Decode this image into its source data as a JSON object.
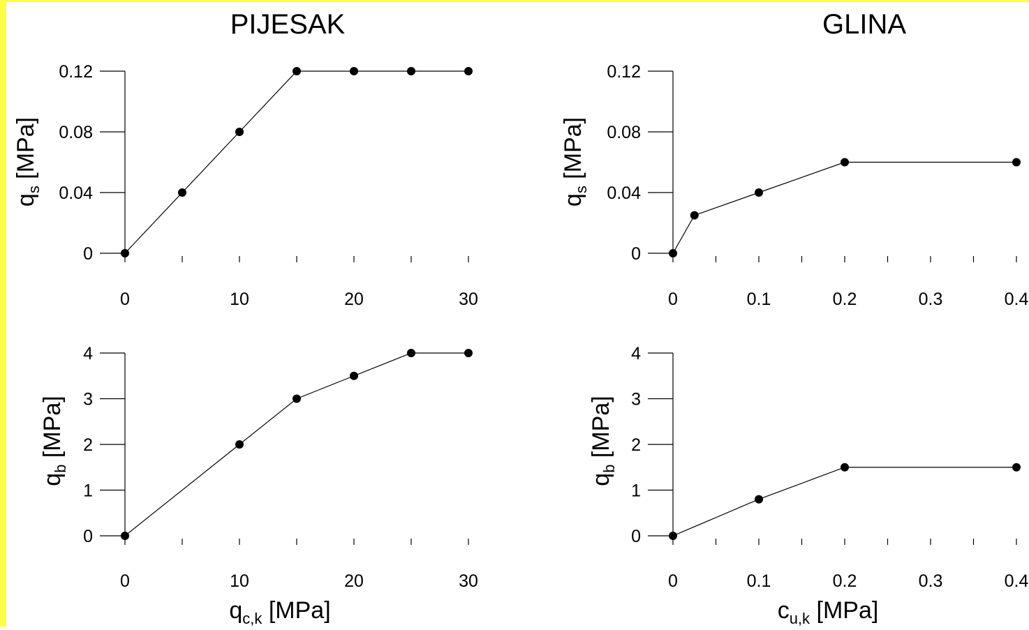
{
  "colors": {
    "background": "#ffffff",
    "edge_band": "#ffff44",
    "ink": "#000000"
  },
  "titles": {
    "left": "PIJESAK",
    "right": "GLINA"
  },
  "chart_data": [
    {
      "id": "sand-qs",
      "type": "line",
      "marker": "filled-circle",
      "grid": false,
      "x": [
        0,
        5,
        10,
        15,
        20,
        25,
        30
      ],
      "y": [
        0,
        0.04,
        0.08,
        0.12,
        0.12,
        0.12,
        0.12
      ],
      "xlim": [
        0,
        30
      ],
      "ylim": [
        0,
        0.12
      ],
      "x_major_ticks": [
        0,
        10,
        20,
        30
      ],
      "x_tick_labels": [
        "0",
        "10",
        "20",
        "30"
      ],
      "x_minor_step": 5,
      "y_major_ticks": [
        0,
        0.04,
        0.08,
        0.12
      ],
      "y_tick_labels": [
        "0",
        "0.04",
        "0.08",
        "0.12"
      ],
      "y_minor_step": 0.02,
      "ylabel": {
        "base": "q",
        "sub": "s",
        "rest": " [MPa]"
      },
      "xlabel": null
    },
    {
      "id": "clay-qs",
      "type": "line",
      "marker": "filled-circle",
      "grid": false,
      "x": [
        0,
        0.025,
        0.1,
        0.2,
        0.4
      ],
      "y": [
        0,
        0.025,
        0.04,
        0.06,
        0.06
      ],
      "xlim": [
        0,
        0.4
      ],
      "ylim": [
        0,
        0.12
      ],
      "x_major_ticks": [
        0,
        0.1,
        0.2,
        0.3,
        0.4
      ],
      "x_tick_labels": [
        "0",
        "0.1",
        "0.2",
        "0.3",
        "0.4"
      ],
      "x_minor_step": 0.05,
      "y_major_ticks": [
        0,
        0.04,
        0.08,
        0.12
      ],
      "y_tick_labels": [
        "0",
        "0.04",
        "0.08",
        "0.12"
      ],
      "y_minor_step": 0.02,
      "ylabel": {
        "base": "q",
        "sub": "s",
        "rest": " [MPa]"
      },
      "xlabel": null
    },
    {
      "id": "sand-qb",
      "type": "line",
      "marker": "filled-circle",
      "grid": false,
      "x": [
        0,
        10,
        15,
        20,
        25,
        30
      ],
      "y": [
        0,
        2,
        3,
        3.5,
        4,
        4
      ],
      "xlim": [
        0,
        30
      ],
      "ylim": [
        0,
        4
      ],
      "x_major_ticks": [
        0,
        10,
        20,
        30
      ],
      "x_tick_labels": [
        "0",
        "10",
        "20",
        "30"
      ],
      "x_minor_step": 5,
      "y_major_ticks": [
        0,
        1,
        2,
        3,
        4
      ],
      "y_tick_labels": [
        "0",
        "1",
        "2",
        "3",
        "4"
      ],
      "y_minor_step": 0.5,
      "ylabel": {
        "base": "q",
        "sub": "b",
        "rest": " [MPa]"
      },
      "xlabel": {
        "base": "q",
        "sub": "c,k",
        "rest": " [MPa]"
      }
    },
    {
      "id": "clay-qb",
      "type": "line",
      "marker": "filled-circle",
      "grid": false,
      "x": [
        0,
        0.1,
        0.2,
        0.4
      ],
      "y": [
        0,
        0.8,
        1.5,
        1.5
      ],
      "xlim": [
        0,
        0.4
      ],
      "ylim": [
        0,
        4
      ],
      "x_major_ticks": [
        0,
        0.1,
        0.2,
        0.3,
        0.4
      ],
      "x_tick_labels": [
        "0",
        "0.1",
        "0.2",
        "0.3",
        "0.4"
      ],
      "x_minor_step": 0.05,
      "y_major_ticks": [
        0,
        1,
        2,
        3,
        4
      ],
      "y_tick_labels": [
        "0",
        "1",
        "2",
        "3",
        "4"
      ],
      "y_minor_step": 0.5,
      "ylabel": {
        "base": "q",
        "sub": "b",
        "rest": " [MPa]"
      },
      "xlabel": {
        "base": "c",
        "sub": "u,k",
        "rest": " [MPa]"
      }
    }
  ]
}
